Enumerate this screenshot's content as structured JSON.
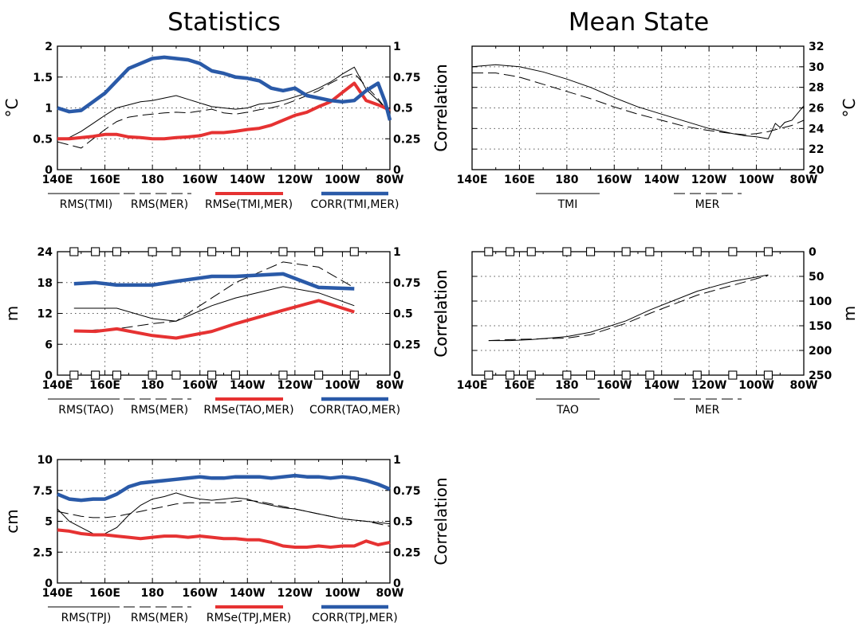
{
  "titles": {
    "statistics": "Statistics",
    "mean_state": "Mean State"
  },
  "colors": {
    "rmse": "#e63232",
    "corr": "#2a5aa8",
    "line": "#000000"
  },
  "lon_ticks": [
    "140E",
    "160E",
    "180",
    "160W",
    "140W",
    "120W",
    "100W",
    "80W"
  ],
  "chart_data": [
    {
      "id": "sst-stats",
      "type": "line",
      "section": "Statistics",
      "ylabel": "°C",
      "ylabel_right": "Correlation",
      "xlim": [
        140,
        280
      ],
      "ylim": [
        0,
        2
      ],
      "y2lim": [
        0,
        1
      ],
      "yticks": [
        0,
        0.5,
        1,
        1.5,
        2
      ],
      "yticks_labels": [
        "0",
        "0.5",
        "1",
        "1.5",
        "2"
      ],
      "y2ticks": [
        0,
        0.25,
        0.5,
        0.75,
        1
      ],
      "y2ticks_labels": [
        "0",
        "0.25",
        "0.5",
        "0.75",
        "1"
      ],
      "legend": [
        "RMS(TMI)",
        "RMS(MER)",
        "RMSe(TMI,MER)",
        "CORR(TMI,MER)"
      ],
      "series": [
        {
          "name": "RMS(TMI)",
          "style": "thin-solid",
          "x": [
            140,
            145,
            150,
            155,
            160,
            165,
            170,
            175,
            180,
            185,
            190,
            195,
            200,
            205,
            210,
            215,
            220,
            225,
            230,
            235,
            240,
            245,
            250,
            255,
            260,
            265,
            270,
            275,
            278,
            280
          ],
          "y": [
            0.5,
            0.52,
            0.62,
            0.75,
            0.88,
            1.0,
            1.05,
            1.1,
            1.12,
            1.16,
            1.2,
            1.14,
            1.08,
            1.02,
            1.0,
            0.98,
            1.0,
            1.06,
            1.08,
            1.12,
            1.18,
            1.24,
            1.32,
            1.42,
            1.55,
            1.66,
            1.3,
            1.12,
            1.0,
            0.95
          ]
        },
        {
          "name": "RMS(MER)",
          "style": "thin-dash",
          "x": [
            140,
            145,
            150,
            155,
            160,
            165,
            170,
            175,
            180,
            185,
            190,
            195,
            200,
            205,
            210,
            215,
            220,
            225,
            230,
            235,
            240,
            245,
            250,
            255,
            260,
            265,
            270,
            275,
            278,
            280
          ],
          "y": [
            0.45,
            0.4,
            0.35,
            0.5,
            0.65,
            0.78,
            0.85,
            0.88,
            0.9,
            0.92,
            0.93,
            0.92,
            0.95,
            0.98,
            0.92,
            0.9,
            0.93,
            0.97,
            1.0,
            1.05,
            1.12,
            1.2,
            1.28,
            1.4,
            1.5,
            1.56,
            1.35,
            1.15,
            1.0,
            0.95
          ]
        },
        {
          "name": "RMSe(TMI,MER)",
          "style": "thick-red",
          "axis": "left",
          "x": [
            140,
            145,
            150,
            155,
            160,
            165,
            170,
            175,
            180,
            185,
            190,
            195,
            200,
            205,
            210,
            215,
            220,
            225,
            230,
            235,
            240,
            245,
            250,
            255,
            260,
            265,
            270,
            275,
            278,
            280
          ],
          "y": [
            0.5,
            0.5,
            0.52,
            0.54,
            0.57,
            0.57,
            0.53,
            0.52,
            0.5,
            0.5,
            0.52,
            0.53,
            0.55,
            0.6,
            0.6,
            0.62,
            0.65,
            0.67,
            0.72,
            0.8,
            0.88,
            0.93,
            1.02,
            1.1,
            1.25,
            1.4,
            1.12,
            1.05,
            1.0,
            0.95
          ]
        },
        {
          "name": "CORR(TMI,MER)",
          "style": "thick-blue",
          "axis": "right",
          "x": [
            140,
            145,
            150,
            155,
            160,
            165,
            170,
            175,
            180,
            185,
            190,
            195,
            200,
            205,
            210,
            215,
            220,
            225,
            230,
            235,
            240,
            245,
            250,
            255,
            260,
            265,
            270,
            275,
            278,
            280
          ],
          "y": [
            0.5,
            0.47,
            0.48,
            0.55,
            0.62,
            0.72,
            0.82,
            0.86,
            0.9,
            0.91,
            0.9,
            0.89,
            0.86,
            0.8,
            0.78,
            0.75,
            0.74,
            0.72,
            0.66,
            0.64,
            0.66,
            0.6,
            0.58,
            0.56,
            0.55,
            0.56,
            0.64,
            0.7,
            0.55,
            0.4
          ]
        }
      ]
    },
    {
      "id": "sst-mean",
      "type": "line",
      "section": "Mean State",
      "ylabel": "°C",
      "ylabel_left": "Correlation",
      "xlim": [
        140,
        280
      ],
      "ylim": [
        20,
        32
      ],
      "yticks": [
        20,
        22,
        24,
        26,
        28,
        30,
        32
      ],
      "yticks_labels": [
        "20",
        "22",
        "24",
        "26",
        "28",
        "30",
        "32"
      ],
      "legend": [
        "TMI",
        "MER"
      ],
      "series": [
        {
          "name": "TMI",
          "style": "thin-solid",
          "x": [
            140,
            150,
            160,
            170,
            180,
            190,
            200,
            210,
            220,
            230,
            240,
            250,
            255,
            260,
            265,
            268,
            270,
            272,
            275,
            280
          ],
          "y": [
            30.0,
            30.2,
            30.0,
            29.5,
            28.8,
            28.0,
            27.0,
            26.1,
            25.4,
            24.7,
            24.0,
            23.5,
            23.3,
            23.2,
            23.0,
            24.5,
            24.1,
            24.6,
            24.8,
            26.2
          ]
        },
        {
          "name": "MER",
          "style": "thin-dash",
          "x": [
            140,
            150,
            160,
            170,
            180,
            190,
            200,
            210,
            220,
            230,
            240,
            250,
            255,
            260,
            265,
            270,
            275,
            280
          ],
          "y": [
            29.4,
            29.4,
            29.0,
            28.3,
            27.6,
            26.9,
            26.1,
            25.4,
            24.8,
            24.2,
            23.8,
            23.5,
            23.4,
            23.5,
            23.7,
            24.0,
            24.3,
            24.8
          ]
        }
      ]
    },
    {
      "id": "depth-stats",
      "type": "line",
      "section": "Statistics",
      "ylabel": "m",
      "ylabel_right": "Correlation",
      "xlim": [
        140,
        280
      ],
      "ylim": [
        0,
        24
      ],
      "y2lim": [
        0,
        1
      ],
      "yticks": [
        0,
        6,
        12,
        18,
        24
      ],
      "yticks_labels": [
        "0",
        "6",
        "12",
        "18",
        "24"
      ],
      "y2ticks": [
        0,
        0.25,
        0.5,
        0.75,
        1
      ],
      "y2ticks_labels": [
        "0",
        "0.25",
        "0.5",
        "0.75",
        "1"
      ],
      "mooring_lons": [
        147,
        156,
        165,
        180,
        190,
        205,
        215,
        235,
        250,
        265
      ],
      "legend": [
        "RMS(TAO)",
        "RMS(MER)",
        "RMSe(TAO,MER)",
        "CORR(TAO,MER)"
      ],
      "series": [
        {
          "name": "RMS(TAO)",
          "style": "thin-solid",
          "x": [
            147,
            156,
            165,
            180,
            190,
            205,
            215,
            235,
            250,
            265
          ],
          "y": [
            13.0,
            13.0,
            13.0,
            11.0,
            10.5,
            13.5,
            15.0,
            17.2,
            16.0,
            13.5
          ]
        },
        {
          "name": "RMS(MER)",
          "style": "thin-dash",
          "x": [
            147,
            156,
            165,
            180,
            190,
            205,
            215,
            235,
            250,
            265
          ],
          "y": [
            8.5,
            8.8,
            9.0,
            10.0,
            10.5,
            15.0,
            18.0,
            22.0,
            21.0,
            17.0
          ]
        },
        {
          "name": "RMSe(TAO,MER)",
          "style": "thick-red",
          "axis": "left",
          "x": [
            147,
            156,
            165,
            180,
            190,
            205,
            215,
            235,
            250,
            265
          ],
          "y": [
            8.6,
            8.5,
            9.0,
            7.7,
            7.2,
            8.5,
            10.0,
            12.6,
            14.5,
            12.3
          ]
        },
        {
          "name": "CORR(TAO,MER)",
          "style": "thick-blue",
          "axis": "right",
          "x": [
            147,
            156,
            165,
            180,
            190,
            205,
            215,
            235,
            250,
            265
          ],
          "y": [
            0.74,
            0.75,
            0.73,
            0.73,
            0.76,
            0.8,
            0.8,
            0.82,
            0.71,
            0.7
          ]
        }
      ]
    },
    {
      "id": "depth-mean",
      "type": "line",
      "section": "Mean State",
      "ylabel": "m",
      "ylabel_left": "Correlation",
      "xlim": [
        140,
        280
      ],
      "ylim": [
        250,
        0
      ],
      "yticks": [
        0,
        50,
        100,
        150,
        200,
        250
      ],
      "yticks_labels": [
        "0",
        "50",
        "100",
        "150",
        "200",
        "250"
      ],
      "mooring_lons": [
        147,
        156,
        165,
        180,
        190,
        205,
        215,
        235,
        250,
        265
      ],
      "legend": [
        "TAO",
        "MER"
      ],
      "series": [
        {
          "name": "TAO",
          "style": "thin-solid",
          "x": [
            147,
            156,
            165,
            180,
            190,
            205,
            215,
            235,
            250,
            265
          ],
          "y": [
            180,
            180,
            178,
            172,
            163,
            140,
            118,
            80,
            60,
            47
          ]
        },
        {
          "name": "MER",
          "style": "thin-dash",
          "x": [
            147,
            156,
            165,
            180,
            190,
            205,
            215,
            235,
            250,
            265
          ],
          "y": [
            180,
            178,
            177,
            175,
            168,
            145,
            125,
            88,
            68,
            48
          ]
        }
      ]
    },
    {
      "id": "ssh-stats",
      "type": "line",
      "section": "Statistics",
      "ylabel": "cm",
      "ylabel_right": "Correlation",
      "xlim": [
        140,
        280
      ],
      "ylim": [
        0,
        10
      ],
      "y2lim": [
        0,
        1
      ],
      "yticks": [
        0,
        2.5,
        5,
        7.5,
        10
      ],
      "yticks_labels": [
        "0",
        "2.5",
        "5",
        "7.5",
        "10"
      ],
      "y2ticks": [
        0,
        0.25,
        0.5,
        0.75,
        1
      ],
      "y2ticks_labels": [
        "0",
        "0.25",
        "0.5",
        "0.75",
        "1"
      ],
      "legend": [
        "RMS(TPJ)",
        "RMS(MER)",
        "RMSe(TPJ,MER)",
        "CORR(TPJ,MER)"
      ],
      "series": [
        {
          "name": "RMS(TPJ)",
          "style": "thin-solid",
          "x": [
            140,
            145,
            150,
            155,
            160,
            165,
            170,
            175,
            180,
            185,
            190,
            195,
            200,
            205,
            210,
            215,
            220,
            225,
            230,
            235,
            240,
            245,
            250,
            255,
            260,
            265,
            270,
            275,
            280
          ],
          "y": [
            6.0,
            5.0,
            4.5,
            4.0,
            4.0,
            4.5,
            5.5,
            6.3,
            6.8,
            7.0,
            7.3,
            7.0,
            6.8,
            6.7,
            6.8,
            6.9,
            6.8,
            6.5,
            6.3,
            6.1,
            6.0,
            5.8,
            5.6,
            5.4,
            5.2,
            5.1,
            5.0,
            4.9,
            4.8
          ]
        },
        {
          "name": "RMS(MER)",
          "style": "thin-dash",
          "x": [
            140,
            145,
            150,
            155,
            160,
            165,
            170,
            175,
            180,
            185,
            190,
            195,
            200,
            205,
            210,
            215,
            220,
            225,
            230,
            235,
            240,
            245,
            250,
            255,
            260,
            265,
            270,
            275,
            280
          ],
          "y": [
            5.8,
            5.6,
            5.4,
            5.3,
            5.3,
            5.4,
            5.6,
            5.8,
            6.0,
            6.2,
            6.4,
            6.5,
            6.5,
            6.5,
            6.5,
            6.6,
            6.7,
            6.6,
            6.4,
            6.2,
            6.0,
            5.8,
            5.6,
            5.4,
            5.2,
            5.1,
            5.0,
            4.8,
            4.6
          ]
        },
        {
          "name": "RMSe(TPJ,MER)",
          "style": "thick-red",
          "axis": "left",
          "x": [
            140,
            145,
            150,
            155,
            160,
            165,
            170,
            175,
            180,
            185,
            190,
            195,
            200,
            205,
            210,
            215,
            220,
            225,
            230,
            235,
            240,
            245,
            250,
            255,
            260,
            265,
            270,
            275,
            280
          ],
          "y": [
            4.3,
            4.2,
            4.0,
            3.9,
            3.9,
            3.8,
            3.7,
            3.6,
            3.7,
            3.8,
            3.8,
            3.7,
            3.8,
            3.7,
            3.6,
            3.6,
            3.5,
            3.5,
            3.3,
            3.0,
            2.9,
            2.9,
            3.0,
            2.9,
            3.0,
            3.0,
            3.4,
            3.1,
            3.3
          ]
        },
        {
          "name": "CORR(TPJ,MER)",
          "style": "thick-blue",
          "axis": "right",
          "x": [
            140,
            145,
            150,
            155,
            160,
            165,
            170,
            175,
            180,
            185,
            190,
            195,
            200,
            205,
            210,
            215,
            220,
            225,
            230,
            235,
            240,
            245,
            250,
            255,
            260,
            265,
            270,
            275,
            280
          ],
          "y": [
            0.72,
            0.68,
            0.67,
            0.68,
            0.68,
            0.72,
            0.78,
            0.81,
            0.82,
            0.83,
            0.84,
            0.85,
            0.86,
            0.85,
            0.85,
            0.86,
            0.86,
            0.86,
            0.85,
            0.86,
            0.87,
            0.86,
            0.86,
            0.85,
            0.86,
            0.85,
            0.83,
            0.8,
            0.76
          ]
        }
      ]
    }
  ]
}
